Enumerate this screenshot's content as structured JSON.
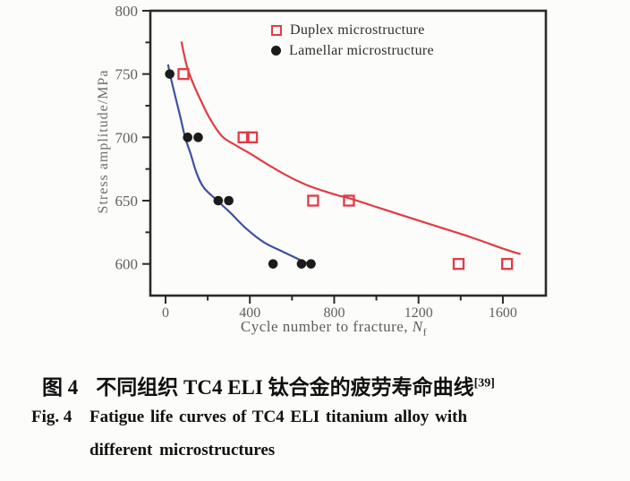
{
  "figure": {
    "caption_cn": {
      "fig_label": "图 4",
      "text": "不同组织 TC4 ELI 钛合金的疲劳寿命曲线",
      "ref": "[39]"
    },
    "caption_en": {
      "fig_label": "Fig. 4",
      "line1": "Fatigue life curves of TC4 ELI titanium alloy with",
      "line2": "different microstructures"
    }
  },
  "chart_data": {
    "type": "scatter",
    "title": "",
    "xlabel": {
      "main": "Cycle number to fracture, ",
      "var": "N",
      "sub": "f"
    },
    "ylabel": "Stress amplitude/MPa",
    "xlim": [
      -72,
      1804
    ],
    "ylim": [
      575,
      800
    ],
    "grid": false,
    "legend_position": "top-right-inside",
    "x_major_ticks": [
      0,
      400,
      800,
      1200,
      1600
    ],
    "x_tick_labels": [
      "0",
      "400",
      "800",
      "1200",
      "1600"
    ],
    "x_minor_ticks": [
      200,
      600,
      1000,
      1400
    ],
    "y_major_ticks": [
      800,
      750,
      700,
      650,
      600
    ],
    "y_tick_labels": [
      "800",
      "750",
      "700",
      "650",
      "600"
    ],
    "y_minor_ticks": [
      775,
      725,
      675,
      625
    ],
    "axis_color": "#2a2a2a",
    "tick_label_color": "#606060",
    "series": [
      {
        "name": "Duplex microstructure",
        "marker": "open-square",
        "color": "#e23b45",
        "curve_color": "#e23b45",
        "points": [
          [
            85,
            750
          ],
          [
            370,
            700
          ],
          [
            410,
            700
          ],
          [
            700,
            650
          ],
          [
            870,
            650
          ],
          [
            1390,
            600
          ],
          [
            1620,
            600
          ]
        ],
        "fit_curve": [
          [
            76,
            775
          ],
          [
            100,
            757
          ],
          [
            130,
            743
          ],
          [
            165,
            730
          ],
          [
            210,
            715
          ],
          [
            267,
            701
          ],
          [
            330,
            694
          ],
          [
            403,
            687
          ],
          [
            490,
            678
          ],
          [
            573,
            670
          ],
          [
            660,
            663
          ],
          [
            743,
            658
          ],
          [
            820,
            654
          ],
          [
            870,
            652
          ],
          [
            1000,
            645
          ],
          [
            1150,
            637
          ],
          [
            1300,
            629
          ],
          [
            1450,
            621
          ],
          [
            1620,
            611
          ],
          [
            1680,
            608
          ]
        ]
      },
      {
        "name": "Lamellar microstructure",
        "marker": "filled-circle",
        "color": "#1b1b1b",
        "curve_color": "#3f51a0",
        "points": [
          [
            20,
            750
          ],
          [
            105,
            700
          ],
          [
            155,
            700
          ],
          [
            250,
            650
          ],
          [
            300,
            650
          ],
          [
            510,
            600
          ],
          [
            645,
            600
          ],
          [
            690,
            600
          ]
        ],
        "fit_curve": [
          [
            13,
            757
          ],
          [
            21,
            750
          ],
          [
            47,
            732
          ],
          [
            72,
            715
          ],
          [
            93,
            700
          ],
          [
            119,
            687
          ],
          [
            149,
            671
          ],
          [
            183,
            660
          ],
          [
            246,
            650
          ],
          [
            310,
            640
          ],
          [
            382,
            628
          ],
          [
            467,
            617
          ],
          [
            552,
            610
          ],
          [
            615,
            605
          ],
          [
            679,
            600
          ]
        ]
      }
    ]
  }
}
